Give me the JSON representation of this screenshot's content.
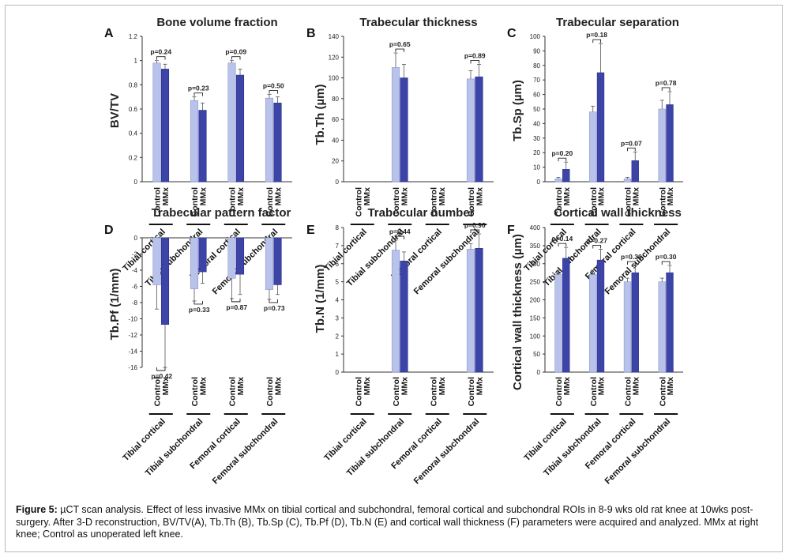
{
  "figure": {
    "caption_label": "Figure 5:",
    "caption_text": " µCT scan analysis. Effect of less invasive MMx on tibial cortical and subchondral, femoral cortical and subchondral ROIs in 8-9 wks old rat knee at 10wks post-surgery. After 3-D reconstruction, BV/TV(A), Tb.Th (B), Tb.Sp (C), Tb.Pf (D), Tb.N (E) and cortical wall thickness (F) parameters were acquired and analyzed. MMx at right knee; Control as unoperated left knee."
  },
  "colors": {
    "control": "#b8c2ea",
    "mmx": "#3c44a8",
    "axis": "#333333"
  },
  "chart_data": [
    {
      "panel": "A",
      "type": "bar",
      "title": "Bone volume fraction",
      "ylabel": "BV/TV",
      "ylim": [
        0,
        1.2
      ],
      "yticks": [
        "0",
        "0.2",
        "0.4",
        "0.6",
        "0.8",
        "1",
        "1.2"
      ],
      "categories": [
        "Tibial cortical",
        "Tibial subchondral",
        "Femoral cortical",
        "Femoral subchondral"
      ],
      "series": [
        {
          "name": "Control",
          "values": [
            0.98,
            0.67,
            0.98,
            0.69
          ],
          "errors": [
            0.02,
            0.03,
            0.02,
            0.03
          ]
        },
        {
          "name": "MMx",
          "values": [
            0.93,
            0.59,
            0.88,
            0.65
          ],
          "errors": [
            0.04,
            0.06,
            0.05,
            0.05
          ]
        }
      ],
      "pvalues": [
        "p=0.24",
        "p=0.23",
        "p=0.09",
        "p=0.50"
      ],
      "subtick_labels": [
        "Control",
        "MMx"
      ]
    },
    {
      "panel": "B",
      "type": "bar",
      "title": "Trabecular thickness",
      "ylabel": "Tb.Th (µm)",
      "ylim": [
        0,
        140
      ],
      "yticks": [
        "0",
        "20",
        "40",
        "60",
        "80",
        "100",
        "120",
        "140"
      ],
      "categories": [
        "Tibial cortical",
        "Tibial subchondral",
        "Femoral cortical",
        "Femoral subchondral"
      ],
      "series": [
        {
          "name": "Control",
          "values": [
            null,
            110,
            null,
            99
          ],
          "errors": [
            null,
            14,
            null,
            8
          ]
        },
        {
          "name": "MMx",
          "values": [
            null,
            100,
            null,
            101
          ],
          "errors": [
            null,
            13,
            null,
            12
          ]
        }
      ],
      "pvalues": [
        "",
        "p=0.65",
        "",
        "p=0.89"
      ],
      "subtick_labels": [
        "Control",
        "MMx"
      ]
    },
    {
      "panel": "C",
      "type": "bar",
      "title": "Trabecular separation",
      "ylabel": "Tb.Sp (µm)",
      "ylim": [
        0,
        100
      ],
      "yticks": [
        "0",
        "10",
        "20",
        "30",
        "40",
        "50",
        "60",
        "70",
        "80",
        "90",
        "100"
      ],
      "categories": [
        "Tibial cortical",
        "Tibial subchondral",
        "Femoral cortical",
        "Femoral subchondral"
      ],
      "series": [
        {
          "name": "Control",
          "values": [
            2,
            48,
            2,
            50
          ],
          "errors": [
            1,
            4,
            1,
            6
          ]
        },
        {
          "name": "MMx",
          "values": [
            8.5,
            75,
            14.5,
            53
          ],
          "errors": [
            5,
            20,
            6,
            9
          ]
        }
      ],
      "pvalues": [
        "p=0.20",
        "p=0.18",
        "p=0.07",
        "p=0.78"
      ],
      "subtick_labels": [
        "Control",
        "MMx"
      ]
    },
    {
      "panel": "D",
      "type": "bar",
      "title": "Trabecular pattern factor",
      "ylabel": "Tb.Pf  (1/mm)",
      "ylim": [
        -16,
        0
      ],
      "yticks": [
        "-16",
        "-14",
        "-12",
        "-10",
        "-8",
        "-6",
        "-4",
        "-2",
        "0"
      ],
      "categories": [
        "Tibial cortical",
        "Tibial subchondral",
        "Femoral cortical",
        "Femoral subchondral"
      ],
      "series": [
        {
          "name": "Control",
          "values": [
            -5.8,
            -6.3,
            -5.0,
            -6.4
          ],
          "errors": [
            3.0,
            1.5,
            2.5,
            1.2
          ]
        },
        {
          "name": "MMx",
          "values": [
            -10.7,
            -4.2,
            -4.5,
            -5.8
          ],
          "errors": [
            5.3,
            1.4,
            2.5,
            1.2
          ]
        }
      ],
      "pvalues": [
        "p=0.42",
        "p=0.33",
        "p=0.87",
        "p=0.73"
      ],
      "subtick_labels": [
        "Control",
        "MMx"
      ]
    },
    {
      "panel": "E",
      "type": "bar",
      "title": "Trabecular number",
      "ylabel": "Tb.N (1/mm)",
      "ylim": [
        0,
        8
      ],
      "yticks": [
        "0",
        "1",
        "2",
        "3",
        "4",
        "5",
        "6",
        "7",
        "8"
      ],
      "categories": [
        "Tibial cortical",
        "Tibial subchondral",
        "Femoral cortical",
        "Femoral subchondral"
      ],
      "series": [
        {
          "name": "Control",
          "values": [
            null,
            6.75,
            null,
            6.8
          ],
          "errors": [
            null,
            0.55,
            null,
            0.3
          ]
        },
        {
          "name": "MMx",
          "values": [
            null,
            6.15,
            null,
            6.85
          ],
          "errors": [
            null,
            0.5,
            null,
            0.8
          ]
        }
      ],
      "pvalues": [
        "",
        "p=0.44",
        "",
        "p=0.96"
      ],
      "subtick_labels": [
        "Control",
        "MMx"
      ]
    },
    {
      "panel": "F",
      "type": "bar",
      "title": "Cortical wall thickness",
      "ylabel": "Cortical wall thickness (µm)",
      "ylim": [
        0,
        400
      ],
      "yticks": [
        "0",
        "50",
        "100",
        "150",
        "200",
        "250",
        "300",
        "350",
        "400"
      ],
      "categories": [
        "Tibial cortical",
        "Tibial subchondral",
        "Femoral cortical",
        "Femoral subchondral"
      ],
      "series": [
        {
          "name": "Control",
          "values": [
            270,
            270,
            250,
            250
          ],
          "errors": [
            12,
            12,
            10,
            10
          ]
        },
        {
          "name": "MMx",
          "values": [
            315,
            310,
            275,
            275
          ],
          "errors": [
            30,
            30,
            20,
            20
          ]
        }
      ],
      "pvalues": [
        "p=0.14",
        "p=0.27",
        "p=0.30",
        "p=0.30"
      ],
      "subtick_labels": [
        "Control",
        "MMx"
      ]
    }
  ]
}
